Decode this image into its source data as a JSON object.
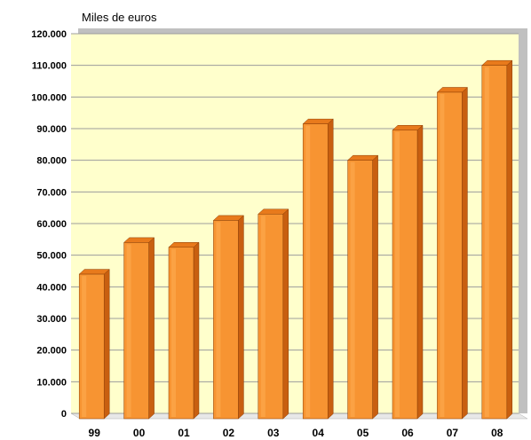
{
  "chart_data": {
    "type": "bar",
    "unit_label": "Miles de euros",
    "categories": [
      "99",
      "00",
      "01",
      "02",
      "03",
      "04",
      "05",
      "06",
      "07",
      "08"
    ],
    "values": [
      44000,
      54000,
      52500,
      61000,
      63000,
      91500,
      80000,
      89500,
      101500,
      110000
    ],
    "ylim": [
      0,
      120000
    ],
    "yticks": [
      0,
      10000,
      20000,
      30000,
      40000,
      50000,
      60000,
      70000,
      80000,
      90000,
      100000,
      110000,
      120000
    ],
    "ytick_labels": [
      "0",
      "10.000",
      "20.000",
      "30.000",
      "40.000",
      "50.000",
      "60.000",
      "70.000",
      "80.000",
      "90.000",
      "100.000",
      "110.000",
      "120.000"
    ],
    "grid": true,
    "colors": {
      "plot_background": "#ffffcc",
      "bar_front": "#f79432",
      "bar_side": "#c85f10",
      "bar_top": "#e87a1c",
      "gridline": "#9c9c9c",
      "wall_shadow": "#c0c0c0"
    }
  }
}
